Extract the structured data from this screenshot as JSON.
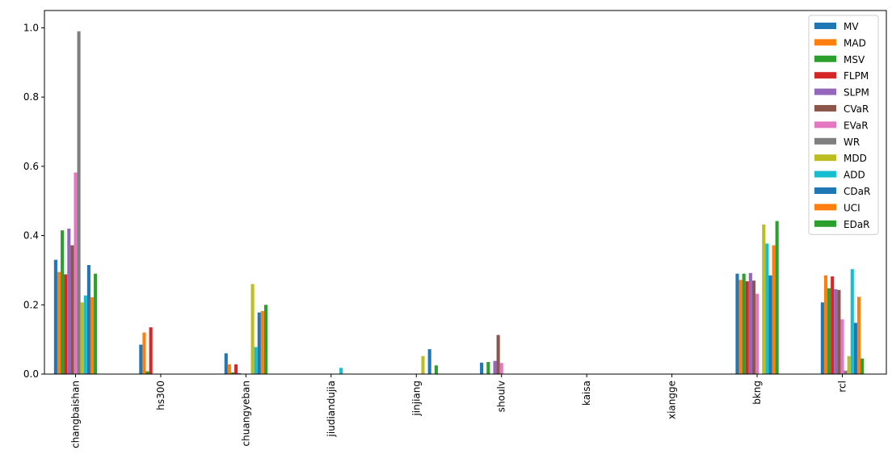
{
  "chart_data": {
    "type": "bar",
    "categories": [
      "changbaishan",
      "hs300",
      "chuangyeban",
      "jiudiandujia",
      "jinjiang",
      "shoulv",
      "kaisa",
      "xiangge",
      "bkng",
      "rcl"
    ],
    "ylim": [
      0,
      1.05
    ],
    "yticks": [
      0.0,
      0.2,
      0.4,
      0.6,
      0.8,
      1.0
    ],
    "ytick_labels": [
      "0.0",
      "0.2",
      "0.4",
      "0.6",
      "0.8",
      "1.0"
    ],
    "legend_position": "top-right",
    "grid": false,
    "series": [
      {
        "name": "MV",
        "color": "#1f77b4",
        "values": [
          0.33,
          0.085,
          0.06,
          0,
          0,
          0.033,
          0,
          0,
          0.29,
          0.207
        ]
      },
      {
        "name": "MAD",
        "color": "#ff7f0e",
        "values": [
          0.295,
          0.12,
          0.028,
          0,
          0,
          0,
          0,
          0,
          0.272,
          0.285
        ]
      },
      {
        "name": "MSV",
        "color": "#2ca02c",
        "values": [
          0.415,
          0.008,
          0.005,
          0,
          0,
          0.035,
          0,
          0,
          0.29,
          0.248
        ]
      },
      {
        "name": "FLPM",
        "color": "#d62728",
        "values": [
          0.288,
          0.135,
          0.028,
          0,
          0,
          0,
          0,
          0,
          0.268,
          0.282
        ]
      },
      {
        "name": "SLPM",
        "color": "#9467bd",
        "values": [
          0.42,
          0,
          0.003,
          0,
          0,
          0.038,
          0,
          0,
          0.292,
          0.245
        ]
      },
      {
        "name": "CVaR",
        "color": "#8c564b",
        "values": [
          0.372,
          0,
          0,
          0,
          0,
          0.113,
          0,
          0,
          0.27,
          0.243
        ]
      },
      {
        "name": "EVaR",
        "color": "#e377c2",
        "values": [
          0.582,
          0,
          0,
          0,
          0,
          0.032,
          0,
          0,
          0.232,
          0.158
        ]
      },
      {
        "name": "WR",
        "color": "#7f7f7f",
        "values": [
          0.99,
          0,
          0,
          0,
          0,
          0,
          0,
          0,
          0,
          0.01
        ]
      },
      {
        "name": "MDD",
        "color": "#bcbd22",
        "values": [
          0.207,
          0,
          0.26,
          0,
          0.052,
          0,
          0,
          0,
          0.432,
          0.052
        ]
      },
      {
        "name": "ADD",
        "color": "#17becf",
        "values": [
          0.227,
          0,
          0.078,
          0.018,
          0,
          0,
          0,
          0,
          0.377,
          0.303
        ]
      },
      {
        "name": "CDaR",
        "color": "#1f77b4",
        "values": [
          0.315,
          0,
          0.178,
          0,
          0.072,
          0,
          0,
          0,
          0.285,
          0.148
        ]
      },
      {
        "name": "UCI",
        "color": "#ff7f0e",
        "values": [
          0.222,
          0,
          0.182,
          0,
          0,
          0,
          0,
          0,
          0.372,
          0.223
        ]
      },
      {
        "name": "EDaR",
        "color": "#2ca02c",
        "values": [
          0.29,
          0,
          0.2,
          0,
          0.025,
          0,
          0,
          0,
          0.442,
          0.045
        ]
      }
    ]
  }
}
